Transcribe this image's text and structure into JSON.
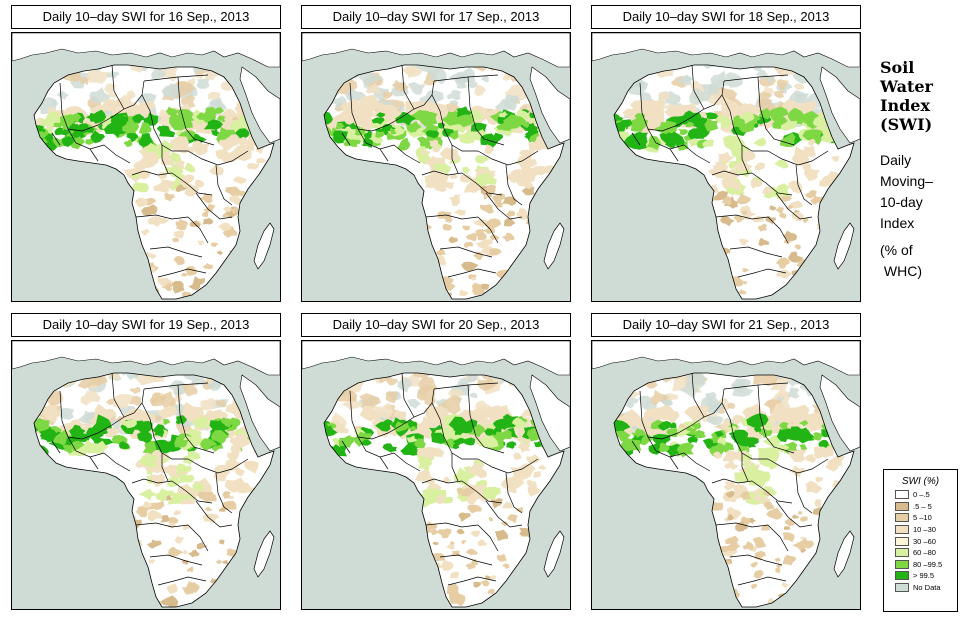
{
  "panels": [
    {
      "title": "Daily 10–day SWI for  16 Sep., 2013",
      "wetness": 1.0
    },
    {
      "title": "Daily 10–day SWI for  17 Sep., 2013",
      "wetness": 0.97
    },
    {
      "title": "Daily 10–day SWI for  18 Sep., 2013",
      "wetness": 0.93
    },
    {
      "title": "Daily 10–day SWI for  19 Sep., 2013",
      "wetness": 0.9
    },
    {
      "title": "Daily 10–day SWI for  20 Sep., 2013",
      "wetness": 0.86
    },
    {
      "title": "Daily 10–day SWI for  21 Sep., 2013",
      "wetness": 0.83
    }
  ],
  "side": {
    "title_lines": [
      "Soil",
      "Water",
      "Index",
      "(SWI)"
    ],
    "sub_lines": [
      "Daily",
      "Moving–",
      "10-day",
      "Index"
    ],
    "unit_lines": [
      "(% of",
      " WHC)"
    ]
  },
  "legend": {
    "title": "SWI (%)",
    "items": [
      {
        "label": "0 –.5",
        "color": "#ffffff"
      },
      {
        "label": ".5 – 5",
        "color": "#d8bb8c"
      },
      {
        "label": "5 –10",
        "color": "#e6cda3"
      },
      {
        "label": "10 –30",
        "color": "#f1e1c2"
      },
      {
        "label": "30 –60",
        "color": "#fbf6d8"
      },
      {
        "label": "60 –80",
        "color": "#d8f0a0"
      },
      {
        "label": "80 –99.5",
        "color": "#7ed844"
      },
      {
        "label": "> 99.5",
        "color": "#22b414"
      },
      {
        "label": "No Data",
        "color": "#cfdcd6"
      }
    ]
  },
  "colors": {
    "ocean": "#cfdcd6",
    "land": "#ffffff",
    "dry": "#d8bb8c",
    "tan": "#e6cda3",
    "lightTan": "#f1e1c2",
    "green": "#7ed844",
    "darkGreen": "#22b414",
    "paleGreen": "#d8f0a0"
  }
}
